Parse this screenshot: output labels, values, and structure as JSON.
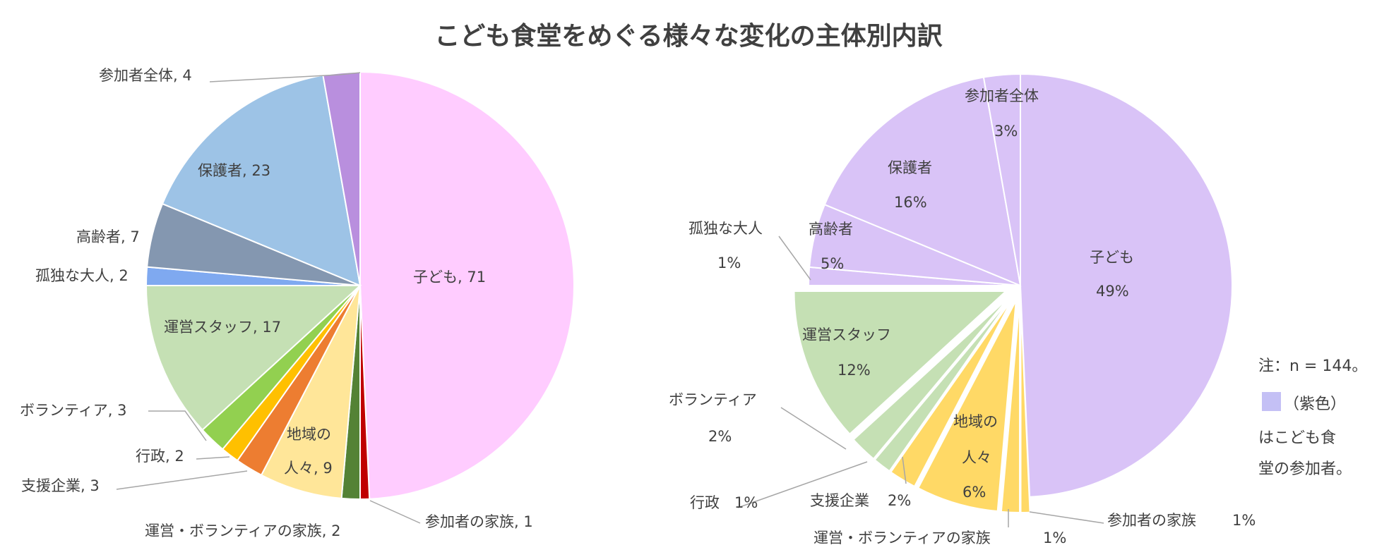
{
  "chart_data": [
    {
      "type": "pie",
      "title": "こども食堂をめぐる様々な変化の主体別内訳",
      "slices": [
        {
          "name": "子ども",
          "value": 71,
          "color": "#FFCCFF",
          "label": "子ども, 71"
        },
        {
          "name": "参加者の家族",
          "value": 1,
          "color": "#C00000",
          "label": "参加者の家族, 1"
        },
        {
          "name": "運営・ボランティアの家族",
          "value": 2,
          "color": "#548235",
          "label": "運営・ボランティアの家族, 2"
        },
        {
          "name": "地域の人々",
          "value": 9,
          "color": "#FFE699",
          "label_line1": "地域の",
          "label_line2": "人々, 9"
        },
        {
          "name": "支援企業",
          "value": 3,
          "color": "#ED7D31",
          "label": "支援企業, 3"
        },
        {
          "name": "行政",
          "value": 2,
          "color": "#FFC000",
          "label": "行政, 2"
        },
        {
          "name": "ボランティア",
          "value": 3,
          "color": "#92D050",
          "label": "ボランティア, 3"
        },
        {
          "name": "運営スタッフ",
          "value": 17,
          "color": "#C5E0B4",
          "label": "運営スタッフ, 17"
        },
        {
          "name": "孤独な大人",
          "value": 2,
          "color": "#7FA9F0",
          "label": "孤独な大人, 2"
        },
        {
          "name": "高齢者",
          "value": 7,
          "color": "#8497B0",
          "label": "高齢者, 7"
        },
        {
          "name": "保護者",
          "value": 23,
          "color": "#9DC3E6",
          "label": "保護者, 23"
        },
        {
          "name": "参加者全体",
          "value": 4,
          "color": "#B98FDE",
          "label": "参加者全体, 4"
        }
      ]
    },
    {
      "type": "pie",
      "exploded": [
        "運営スタッフ",
        "ボランティア",
        "行政",
        "支援企業",
        "地域の人々",
        "運営・ボランティアの家族",
        "参加者の家族"
      ],
      "slices": [
        {
          "name": "子ども",
          "value": 71,
          "percent": "49%",
          "color": "#D9C3F7"
        },
        {
          "name": "参加者の家族",
          "value": 1,
          "percent": "1%",
          "color": "#FFD966"
        },
        {
          "name": "運営・ボランティアの家族",
          "value": 2,
          "percent": "1%",
          "color": "#FFD966"
        },
        {
          "name": "地域の人々",
          "value": 9,
          "percent": "6%",
          "color": "#FFD966",
          "label_line1": "地域の",
          "label_line2": "人々"
        },
        {
          "name": "支援企業",
          "value": 3,
          "percent": "2%",
          "color": "#FFD966"
        },
        {
          "name": "行政",
          "value": 2,
          "percent": "1%",
          "color": "#C5E0B4"
        },
        {
          "name": "ボランティア",
          "value": 3,
          "percent": "2%",
          "color": "#C5E0B4"
        },
        {
          "name": "運営スタッフ",
          "value": 17,
          "percent": "12%",
          "color": "#C5E0B4"
        },
        {
          "name": "孤独な大人",
          "value": 2,
          "percent": "1%",
          "color": "#D9C3F7"
        },
        {
          "name": "高齢者",
          "value": 7,
          "percent": "5%",
          "color": "#D9C3F7"
        },
        {
          "name": "保護者",
          "value": 23,
          "percent": "16%",
          "color": "#D9C3F7"
        },
        {
          "name": "参加者全体",
          "value": 4,
          "percent": "3%",
          "color": "#D9C3F7"
        }
      ]
    }
  ],
  "note": {
    "line1": "注：n = 144。",
    "legend_text": "（紫色）",
    "legend_color": "#C4C0F5",
    "line3": "はこども食",
    "line4": "堂の参加者。"
  }
}
